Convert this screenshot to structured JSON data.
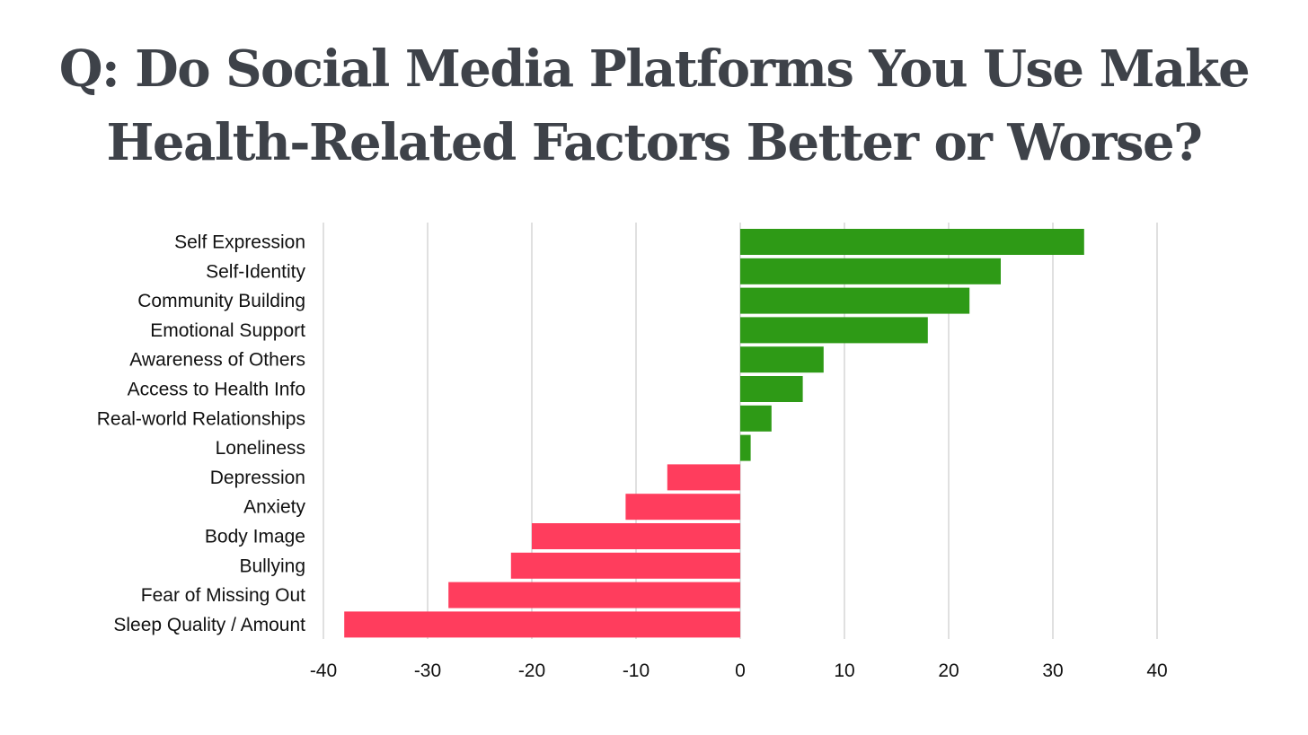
{
  "title_lines": [
    "Q: Do Social Media Platforms You Use Make",
    "Health-Related Factors Better or Worse?"
  ],
  "colors": {
    "positive": "#2e9a16",
    "negative": "#ff3d5d",
    "grid": "#cccccc",
    "title": "#3e4249"
  },
  "chart_data": {
    "type": "bar",
    "orientation": "horizontal",
    "categories": [
      "Self Expression",
      "Self-Identity",
      "Community Building",
      "Emotional Support",
      "Awareness of Others",
      "Access to Health Info",
      "Real-world Relationships",
      "Loneliness",
      "Depression",
      "Anxiety",
      "Body Image",
      "Bullying",
      "Fear of Missing Out",
      "Sleep Quality / Amount"
    ],
    "values": [
      33,
      25,
      22,
      18,
      8,
      6,
      3,
      1,
      -7,
      -11,
      -20,
      -22,
      -28,
      -38
    ],
    "title": "Q: Do Social Media Platforms You Use Make Health-Related Factors Better or Worse?",
    "xlabel": "",
    "ylabel": "",
    "xlim": [
      -40,
      40
    ],
    "xticks": [
      -40,
      -30,
      -20,
      -10,
      0,
      10,
      20,
      30,
      40
    ],
    "grid": true,
    "legend": "none"
  }
}
